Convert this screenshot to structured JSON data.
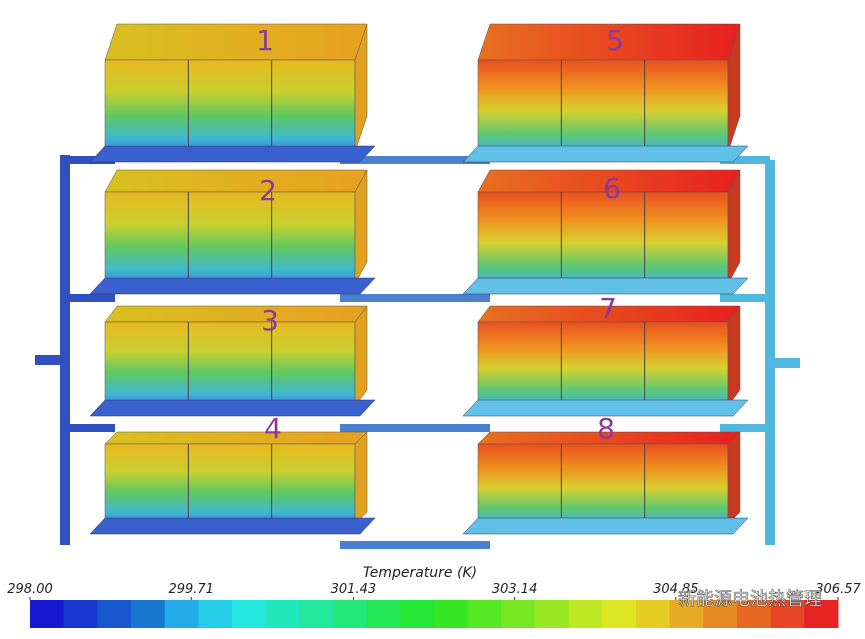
{
  "labels": [
    "1",
    "2",
    "3",
    "4",
    "5",
    "6",
    "7",
    "8"
  ],
  "colorbar": {
    "title": "Temperature (K)",
    "ticks": [
      {
        "value": 298,
        "label": "298.00"
      },
      {
        "value": 299.71,
        "label": "299.71"
      },
      {
        "value": 301.43,
        "label": "301.43"
      },
      {
        "value": 303.14,
        "label": "303.14"
      },
      {
        "value": 304.85,
        "label": "304.85"
      },
      {
        "value": 306.57,
        "label": "306.57"
      }
    ]
  },
  "watermark": "新能源电池热管理"
}
